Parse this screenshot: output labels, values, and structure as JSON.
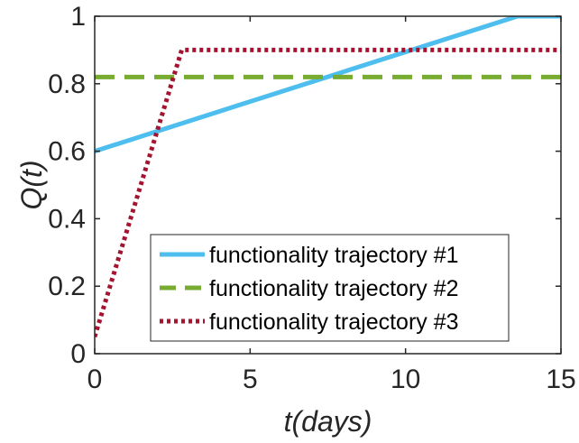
{
  "chart_data": {
    "type": "line",
    "title": "",
    "xlabel": "t(days)",
    "ylabel": "Q(t)",
    "xlim": [
      0,
      15
    ],
    "ylim": [
      0,
      1
    ],
    "xticks": [
      0,
      5,
      10,
      15
    ],
    "yticks": [
      0,
      0.2,
      0.4,
      0.6,
      0.8,
      1
    ],
    "ytick_labels": [
      "0",
      "0.2",
      "0.4",
      "0.6",
      "0.8",
      "1"
    ],
    "grid": false,
    "legend_position": "bottom-right",
    "series": [
      {
        "name": "functionality trajectory #1",
        "style": "solid",
        "color": "#4DBEEE",
        "x": [
          0,
          13.6,
          15
        ],
        "y": [
          0.6,
          1.0,
          1.0
        ]
      },
      {
        "name": "functionality trajectory #2",
        "style": "dashed",
        "color": "#77AC30",
        "x": [
          0,
          15
        ],
        "y": [
          0.82,
          0.82
        ]
      },
      {
        "name": "functionality trajectory #3",
        "style": "dotted",
        "color": "#A2142F",
        "x": [
          0,
          2.8,
          15
        ],
        "y": [
          0.05,
          0.9,
          0.9
        ]
      }
    ]
  }
}
